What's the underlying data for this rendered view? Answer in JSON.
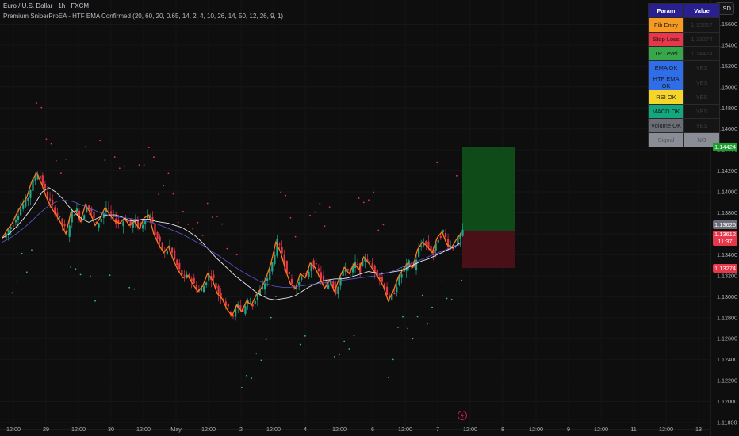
{
  "header": {
    "title": "Euro / U.S. Dollar · 1h · FXCM",
    "indicator": "Premium SniperProEA - HTF EMA Confirmed (20, 60, 20, 0.65, 14, 2, 4, 10, 26, 14, 50, 12, 26, 9, 1)"
  },
  "currency_button": "USD",
  "param_table": {
    "headers": [
      "Param",
      "Value"
    ],
    "rows": [
      {
        "param": "Fib Entry",
        "value": "1.13657",
        "color": "#f59a23",
        "text": "#1a1a1a"
      },
      {
        "param": "Stop Loss",
        "value": "1.13274",
        "color": "#e8364a",
        "text": "#1a1a1a"
      },
      {
        "param": "TP Level",
        "value": "1.14424",
        "color": "#36a84a",
        "text": "#1a1a1a"
      },
      {
        "param": "EMA OK",
        "value": "YES",
        "color": "#2f6ee8",
        "text": "#1a1a1a"
      },
      {
        "param": "HTF EMA OK",
        "value": "YES",
        "color": "#2f6ee8",
        "text": "#1a1a1a"
      },
      {
        "param": "RSI OK",
        "value": "YES",
        "color": "#f5d52a",
        "text": "#1a1a1a"
      },
      {
        "param": "MACD OK",
        "value": "YES",
        "color": "#11a87f",
        "text": "#1a1a1a"
      },
      {
        "param": "Volume OK",
        "value": "YES",
        "color": "#6b6e76",
        "text": "#1a1a1a"
      },
      {
        "param": "Signal",
        "value": "NO",
        "color": "#8a8d96",
        "text": "#55575d"
      }
    ]
  },
  "price_labels": {
    "tp": {
      "text": "1.14424",
      "color": "#1e9e2e"
    },
    "current": {
      "text": "1.13626",
      "color": "#6b6e76"
    },
    "last": {
      "text": "1.13612",
      "color": "#e8364a"
    },
    "countdown": "11:37",
    "sl": {
      "text": "1.13274",
      "color": "#e8364a"
    }
  },
  "chart_data": {
    "type": "candlestick",
    "symbol": "EURUSD",
    "timeframe": "1h",
    "ylim": [
      1.118,
      1.158
    ],
    "y_ticks": [
      "1.15600",
      "1.15400",
      "1.15200",
      "1.15000",
      "1.14800",
      "1.14600",
      "1.14400",
      "1.14200",
      "1.14000",
      "1.13800",
      "1.13600",
      "1.13400",
      "1.13200",
      "1.13000",
      "1.12800",
      "1.12600",
      "1.12400",
      "1.12200",
      "1.12000",
      "1.11800"
    ],
    "x_ticks": [
      "12:00",
      "29",
      "12:00",
      "30",
      "12:00",
      "May",
      "12:00",
      "2",
      "12:00",
      "4",
      "12:00",
      "6",
      "12:00",
      "7",
      "12:00",
      "8",
      "12:00",
      "9",
      "12:00",
      "11",
      "12:00",
      "13"
    ],
    "close_path": [
      1.1356,
      1.1364,
      1.137,
      1.138,
      1.1388,
      1.1395,
      1.141,
      1.1418,
      1.1408,
      1.1395,
      1.1385,
      1.1378,
      1.137,
      1.136,
      1.138,
      1.1382,
      1.1372,
      1.1388,
      1.138,
      1.1368,
      1.1375,
      1.1385,
      1.1378,
      1.1372,
      1.137,
      1.1375,
      1.1368,
      1.1372,
      1.1365,
      1.1375,
      1.1378,
      1.136,
      1.135,
      1.1342,
      1.1348,
      1.1335,
      1.1325,
      1.1318,
      1.132,
      1.1312,
      1.1305,
      1.131,
      1.1322,
      1.1316,
      1.1303,
      1.1298,
      1.1288,
      1.1282,
      1.1292,
      1.1286,
      1.1296,
      1.1292,
      1.1302,
      1.1308,
      1.1318,
      1.1332,
      1.1352,
      1.1342,
      1.1325,
      1.1312,
      1.1308,
      1.1322,
      1.1318,
      1.1332,
      1.1328,
      1.1318,
      1.1308,
      1.1316,
      1.1305,
      1.1318,
      1.1328,
      1.1322,
      1.1332,
      1.1326,
      1.1338,
      1.1332,
      1.1325,
      1.1318,
      1.131,
      1.1296,
      1.1305,
      1.1318,
      1.1326,
      1.1332,
      1.1328,
      1.1345,
      1.1352,
      1.1348,
      1.1342,
      1.1356,
      1.1362,
      1.135,
      1.1347,
      1.1355,
      1.1361
    ],
    "ema_fast": [
      1.1356,
      1.136,
      1.1366,
      1.1373,
      1.1381,
      1.139,
      1.14,
      1.1404,
      1.14,
      1.1394,
      1.1386,
      1.1379,
      1.1374,
      1.1371,
      1.1374,
      1.1377,
      1.1378,
      1.1378,
      1.1376,
      1.1373,
      1.1372,
      1.1374,
      1.1374,
      1.1372,
      1.1371,
      1.137,
      1.1368,
      1.1366,
      1.1362,
      1.1358,
      1.1352,
      1.1345,
      1.1338,
      1.1332,
      1.1326,
      1.132,
      1.1315,
      1.131,
      1.1305,
      1.1301,
      1.1298,
      1.1297,
      1.1298,
      1.1299,
      1.1301,
      1.1305,
      1.1309,
      1.1312,
      1.1315,
      1.1316,
      1.1317,
      1.1317,
      1.1318,
      1.132,
      1.1322,
      1.1324,
      1.1323,
      1.1322,
      1.1323,
      1.1324,
      1.1325,
      1.1328,
      1.1331,
      1.1334,
      1.1336,
      1.1339,
      1.1342,
      1.1345,
      1.1348,
      1.1352
    ],
    "ema_slow": [
      1.1352,
      1.1356,
      1.1361,
      1.1367,
      1.1374,
      1.1381,
      1.1387,
      1.1391,
      1.1392,
      1.1391,
      1.1388,
      1.1385,
      1.1382,
      1.1379,
      1.1377,
      1.1376,
      1.1375,
      1.1374,
      1.1373,
      1.1371,
      1.1369,
      1.1366,
      1.1363,
      1.136,
      1.1356,
      1.1352,
      1.1348,
      1.1343,
      1.1338,
      1.1333,
      1.1328,
      1.1323,
      1.1319,
      1.1315,
      1.1312,
      1.131,
      1.1309,
      1.1309,
      1.131,
      1.1311,
      1.1312,
      1.1313,
      1.1314,
      1.1315,
      1.1316,
      1.1317,
      1.1318,
      1.1319,
      1.132,
      1.1322,
      1.1324,
      1.1327,
      1.133,
      1.1333,
      1.1336,
      1.1339,
      1.1342,
      1.1345,
      1.1348,
      1.135
    ],
    "long_position": {
      "entry": 1.13626,
      "take_profit": 1.14424,
      "stop_loss": 1.13274
    }
  }
}
